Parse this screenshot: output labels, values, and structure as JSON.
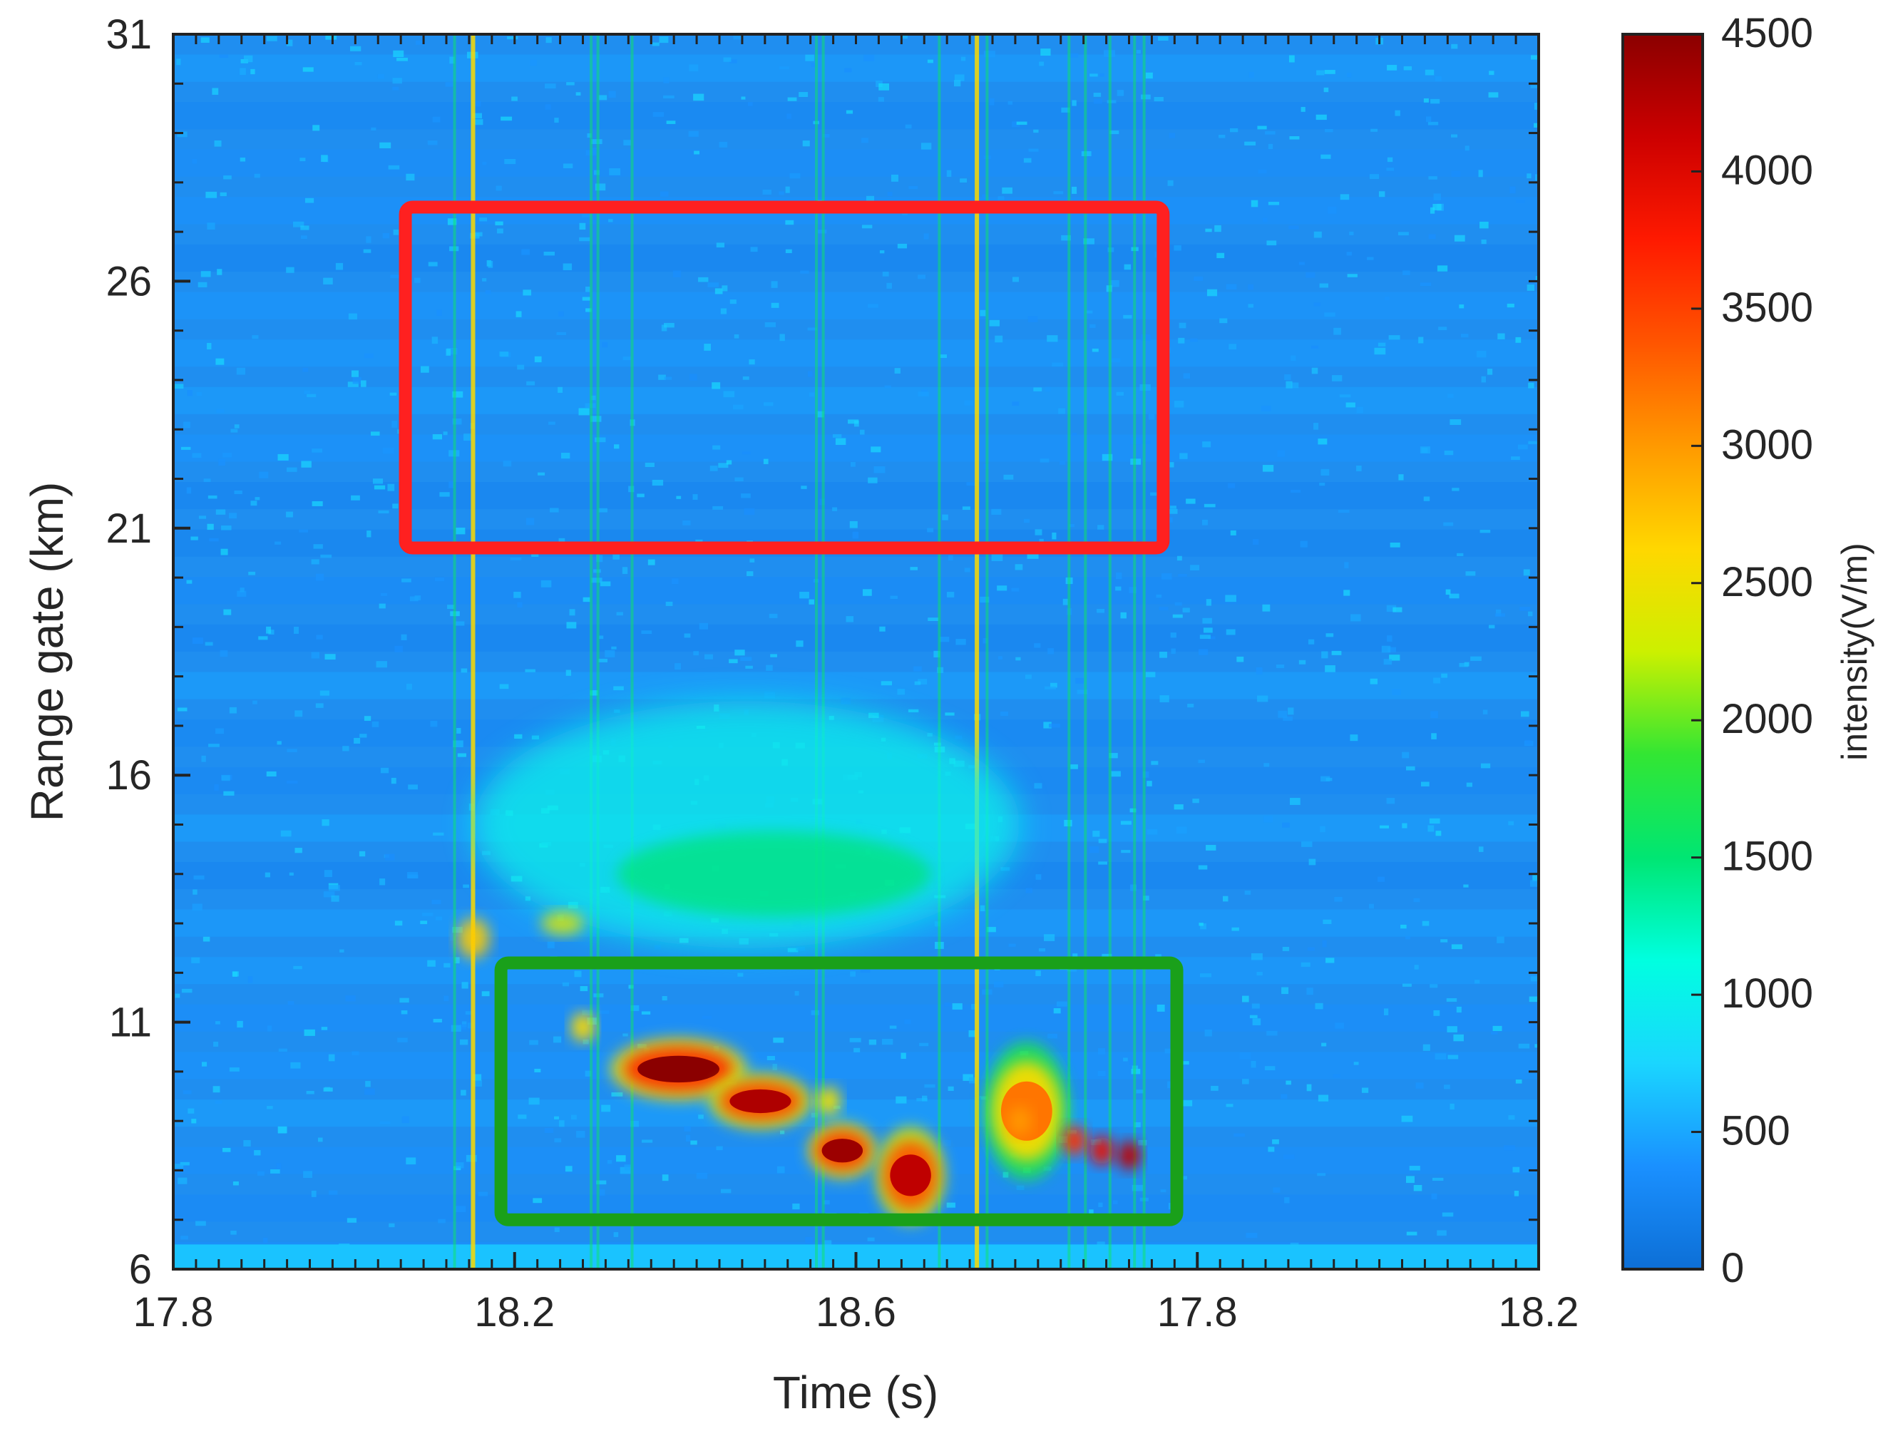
{
  "chart_data": {
    "type": "heatmap",
    "title": "",
    "xlabel": "Time (s)",
    "ylabel": "Range gate (km)",
    "x_tick_labels": [
      "17.8",
      "18.2",
      "18.6",
      "17.8",
      "18.2"
    ],
    "y_ticks": [
      6,
      11,
      16,
      21,
      26,
      31
    ],
    "ylim": [
      6,
      31
    ],
    "colorbar": {
      "label": "intensity(V/m)",
      "range": [
        0,
        4500
      ],
      "ticks": [
        0,
        500,
        1000,
        1500,
        2000,
        2500,
        3000,
        3500,
        4000,
        4500
      ],
      "colormap": [
        "#0d6fd6",
        "#1a90ff",
        "#1ad6ff",
        "#00ffe0",
        "#00e673",
        "#33e633",
        "#ccf000",
        "#ffd700",
        "#ff9900",
        "#ff5500",
        "#ff1a00",
        "#cc0000",
        "#8b0000"
      ]
    },
    "background_intensity": 350,
    "events": [
      {
        "name": "upper faint vertical streaks",
        "x_range": [
          0.21,
          0.7
        ],
        "y_range": [
          6,
          31
        ],
        "intensity": 1600
      },
      {
        "name": "diffuse echo band",
        "x_range": [
          0.22,
          0.62
        ],
        "y_range": [
          12.5,
          17.5
        ],
        "intensity": 1000
      },
      {
        "name": "strong echo A",
        "x_range": [
          0.33,
          0.41
        ],
        "y_range": [
          9.6,
          10.5
        ],
        "intensity": 4500
      },
      {
        "name": "strong echo B",
        "x_range": [
          0.4,
          0.46
        ],
        "y_range": [
          9.0,
          9.8
        ],
        "intensity": 4300
      },
      {
        "name": "strong echo C",
        "x_range": [
          0.47,
          0.51
        ],
        "y_range": [
          8.0,
          8.8
        ],
        "intensity": 4400
      },
      {
        "name": "strong echo D",
        "x_range": [
          0.52,
          0.56
        ],
        "y_range": [
          7.2,
          8.6
        ],
        "intensity": 4200
      },
      {
        "name": "moderate echo E",
        "x_range": [
          0.6,
          0.65
        ],
        "y_range": [
          8.2,
          10.2
        ],
        "intensity": 3200
      }
    ],
    "annotations": [
      {
        "name": "red-box",
        "color": "#ff2020",
        "x_range": [
          0.17,
          0.725
        ],
        "y_range": [
          20.6,
          27.5
        ]
      },
      {
        "name": "green-box",
        "color": "#1aa01a",
        "x_range": [
          0.24,
          0.735
        ],
        "y_range": [
          7.0,
          12.2
        ]
      }
    ]
  }
}
